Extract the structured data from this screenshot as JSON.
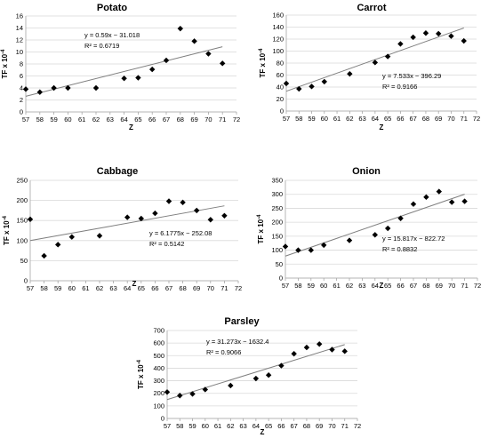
{
  "chart_data": [
    {
      "type": "scatter",
      "title": "Potato",
      "xlabel": "Z",
      "ylabel": "TF x 10",
      "ylabel_exp": "-4",
      "xlim": [
        57,
        72
      ],
      "ylim": [
        0,
        16
      ],
      "x_ticks": [
        57,
        58,
        59,
        60,
        61,
        62,
        63,
        64,
        65,
        66,
        67,
        68,
        69,
        70,
        71,
        72
      ],
      "y_ticks": [
        0,
        2,
        4,
        6,
        8,
        10,
        12,
        14,
        16
      ],
      "grid": true,
      "points": [
        [
          57,
          3.8
        ],
        [
          58,
          3.3
        ],
        [
          59,
          4.0
        ],
        [
          60,
          4.0
        ],
        [
          62,
          4.0
        ],
        [
          64,
          5.6
        ],
        [
          65,
          5.7
        ],
        [
          66,
          7.1
        ],
        [
          67,
          8.6
        ],
        [
          68,
          13.9
        ],
        [
          69,
          11.8
        ],
        [
          70,
          9.7
        ],
        [
          71,
          8.1
        ]
      ],
      "trendline": {
        "slope": 0.59,
        "intercept": -31.018
      },
      "equation": "y = 0.59x − 31.018",
      "r2": "R² = 0.6719"
    },
    {
      "type": "scatter",
      "title": "Carrot",
      "xlabel": "Z",
      "ylabel": "TF x 10",
      "ylabel_exp": "-4",
      "xlim": [
        57,
        72
      ],
      "ylim": [
        0,
        160
      ],
      "x_ticks": [
        57,
        58,
        59,
        60,
        61,
        62,
        63,
        64,
        65,
        66,
        67,
        68,
        69,
        70,
        71,
        72
      ],
      "y_ticks": [
        0,
        20,
        40,
        60,
        80,
        100,
        120,
        140,
        160
      ],
      "grid": true,
      "points": [
        [
          57,
          46
        ],
        [
          58,
          37
        ],
        [
          59,
          41
        ],
        [
          60,
          49
        ],
        [
          62,
          62
        ],
        [
          64,
          81
        ],
        [
          65,
          91
        ],
        [
          66,
          112
        ],
        [
          67,
          123
        ],
        [
          68,
          130
        ],
        [
          69,
          129
        ],
        [
          70,
          125
        ],
        [
          71,
          117
        ]
      ],
      "trendline": {
        "slope": 7.533,
        "intercept": -396.29
      },
      "equation": "y = 7.533x − 396.29",
      "r2": "R² = 0.9166"
    },
    {
      "type": "scatter",
      "title": "Cabbage",
      "xlabel": "Z",
      "ylabel": "TF x 10",
      "ylabel_exp": "-4",
      "xlim": [
        57,
        72
      ],
      "ylim": [
        0,
        250
      ],
      "x_ticks": [
        57,
        58,
        59,
        60,
        61,
        62,
        63,
        64,
        65,
        66,
        67,
        68,
        69,
        70,
        71,
        72
      ],
      "y_ticks": [
        0,
        50,
        100,
        150,
        200,
        250
      ],
      "grid": true,
      "points": [
        [
          57,
          153
        ],
        [
          58,
          62
        ],
        [
          59,
          90
        ],
        [
          60,
          109
        ],
        [
          62,
          112
        ],
        [
          64,
          158
        ],
        [
          65,
          155
        ],
        [
          66,
          168
        ],
        [
          67,
          198
        ],
        [
          68,
          195
        ],
        [
          69,
          175
        ],
        [
          70,
          152
        ],
        [
          71,
          162
        ]
      ],
      "trendline": {
        "slope": 6.1775,
        "intercept": -252.08
      },
      "equation": "y = 6.1775x − 252.08",
      "r2": "R² = 0.5142"
    },
    {
      "type": "scatter",
      "title": "Onion",
      "xlabel": "Z",
      "ylabel": "TF x 10",
      "ylabel_exp": "-4",
      "xlim": [
        57,
        72
      ],
      "ylim": [
        0,
        350
      ],
      "x_ticks": [
        57,
        58,
        59,
        60,
        61,
        62,
        63,
        64,
        65,
        66,
        67,
        68,
        69,
        70,
        71,
        72
      ],
      "y_ticks": [
        0,
        50,
        100,
        150,
        200,
        250,
        300,
        350
      ],
      "grid": true,
      "points": [
        [
          57,
          113
        ],
        [
          58,
          100
        ],
        [
          59,
          100
        ],
        [
          60,
          118
        ],
        [
          62,
          135
        ],
        [
          64,
          155
        ],
        [
          65,
          178
        ],
        [
          66,
          214
        ],
        [
          67,
          265
        ],
        [
          68,
          290
        ],
        [
          69,
          310
        ],
        [
          70,
          272
        ],
        [
          71,
          275
        ]
      ],
      "trendline": {
        "slope": 15.817,
        "intercept": -822.72
      },
      "equation": "y = 15.817x − 822.72",
      "r2": "R² = 0.8832"
    },
    {
      "type": "scatter",
      "title": "Parsley",
      "xlabel": "Z",
      "ylabel": "TF x 10",
      "ylabel_exp": "-4",
      "xlim": [
        57,
        72
      ],
      "ylim": [
        0,
        700
      ],
      "x_ticks": [
        57,
        58,
        59,
        60,
        61,
        62,
        63,
        64,
        65,
        66,
        67,
        68,
        69,
        70,
        71,
        72
      ],
      "y_ticks": [
        0,
        100,
        200,
        300,
        400,
        500,
        600,
        700
      ],
      "grid": true,
      "points": [
        [
          57,
          210
        ],
        [
          58,
          182
        ],
        [
          59,
          195
        ],
        [
          60,
          230
        ],
        [
          62,
          262
        ],
        [
          64,
          318
        ],
        [
          65,
          345
        ],
        [
          66,
          420
        ],
        [
          67,
          515
        ],
        [
          68,
          565
        ],
        [
          69,
          592
        ],
        [
          70,
          548
        ],
        [
          71,
          535
        ]
      ],
      "trendline": {
        "slope": 31.273,
        "intercept": -1632.4
      },
      "equation": "y = 31.273x − 1632.4",
      "r2": "R² = 0.9066"
    }
  ]
}
